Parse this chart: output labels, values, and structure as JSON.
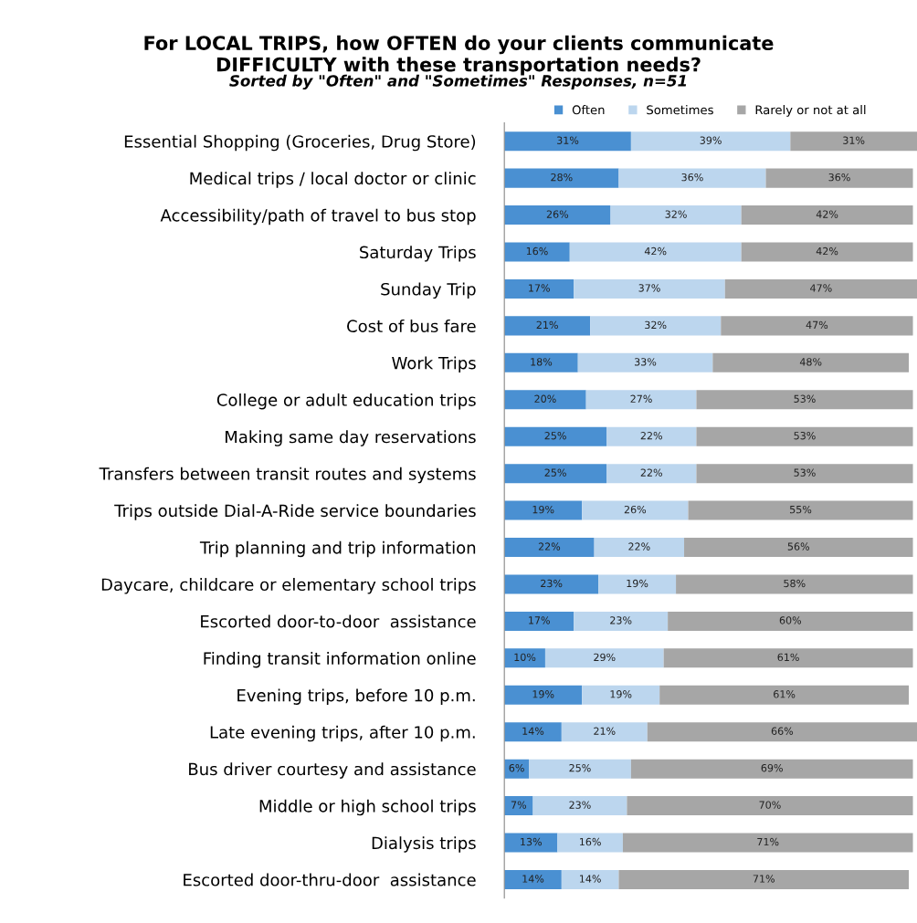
{
  "chart_data": {
    "type": "bar",
    "orientation": "horizontal",
    "stacked": true,
    "title": "For LOCAL TRIPS, how OFTEN do your clients communicate\nDIFFICULTY with these transportation needs?",
    "subtitle": "Sorted by \"Often\" and \"Sometimes\" Responses, n=51",
    "categories": [
      "Essential Shopping (Groceries, Drug Store)",
      "Medical trips / local doctor or clinic",
      "Accessibility/path of travel to bus stop",
      "Saturday Trips",
      "Sunday Trip",
      "Cost of bus fare",
      "Work Trips",
      "College or adult education trips",
      "Making same day reservations",
      "Transfers between transit routes and systems",
      "Trips outside Dial-A-Ride service boundaries",
      "Trip planning and trip information",
      "Daycare, childcare or elementary school trips",
      "Escorted door-to-door  assistance",
      "Finding transit information online",
      "Evening trips, before 10 p.m.",
      "Late evening trips, after 10 p.m.",
      "Bus driver courtesy and assistance",
      "Middle or high school trips",
      "Dialysis trips",
      "Escorted door-thru-door  assistance"
    ],
    "series": [
      {
        "name": "Often",
        "color": "#4a90d2",
        "values": [
          31,
          28,
          26,
          16,
          17,
          21,
          18,
          20,
          25,
          25,
          19,
          22,
          23,
          17,
          10,
          19,
          14,
          6,
          7,
          13,
          14
        ],
        "value_labels": [
          "31%",
          "28%",
          "26%",
          "16%",
          "17%",
          "21%",
          "18%",
          "20%",
          "25%",
          "25%",
          "19%",
          "22%",
          "23%",
          "17%",
          "10%",
          "19%",
          "14%",
          "6%",
          "7%",
          "13%",
          "14%"
        ]
      },
      {
        "name": "Sometimes",
        "color": "#bcd6ee",
        "values": [
          39,
          36,
          32,
          42,
          37,
          32,
          33,
          27,
          22,
          22,
          26,
          22,
          19,
          23,
          29,
          19,
          21,
          25,
          23,
          16,
          14
        ],
        "value_labels": [
          "39%",
          "36%",
          "32%",
          "42%",
          "37%",
          "32%",
          "33%",
          "27%",
          "22%",
          "22%",
          "26%",
          "22%",
          "19%",
          "23%",
          "29%",
          "19%",
          "21%",
          "25%",
          "23%",
          "16%",
          "14%"
        ]
      },
      {
        "name": "Rarely or not at all",
        "color": "#a6a6a6",
        "values": [
          31,
          36,
          42,
          42,
          47,
          47,
          48,
          53,
          53,
          53,
          55,
          56,
          58,
          60,
          61,
          61,
          66,
          69,
          70,
          71,
          71
        ],
        "value_labels": [
          "31%",
          "36%",
          "42%",
          "42%",
          "47%",
          "47%",
          "48%",
          "53%",
          "53%",
          "53%",
          "55%",
          "56%",
          "58%",
          "60%",
          "61%",
          "61%",
          "66%",
          "69%",
          "70%",
          "71%",
          "71%"
        ]
      }
    ],
    "legend": "top",
    "grid": false
  }
}
